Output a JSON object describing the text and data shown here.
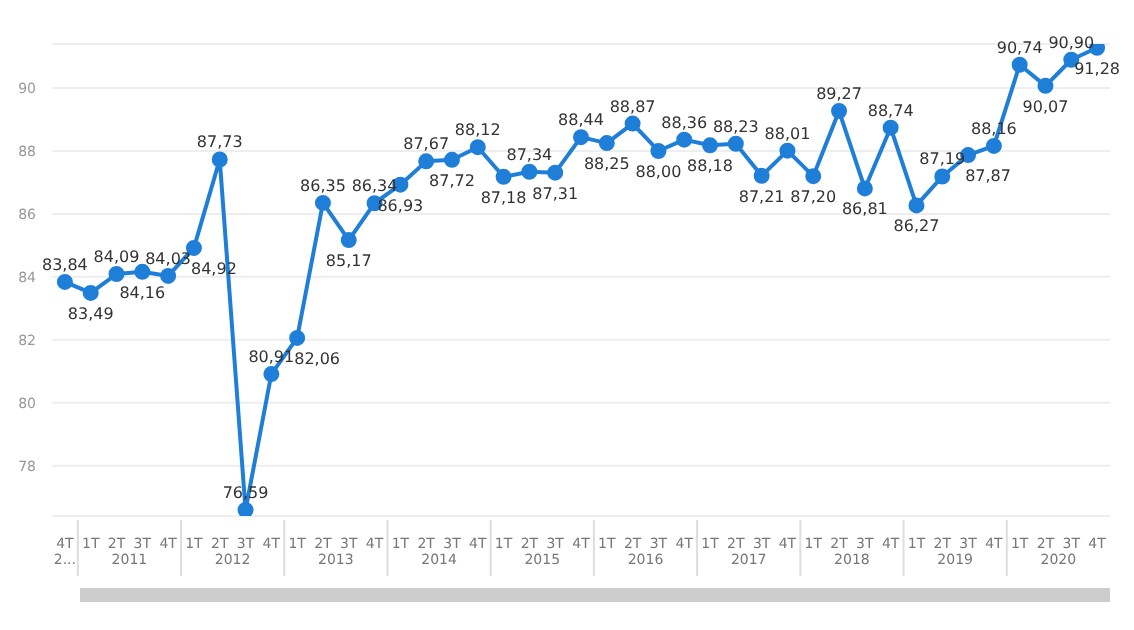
{
  "chart_data": {
    "type": "line",
    "categories": [
      "4T",
      "1T",
      "2T",
      "3T",
      "4T",
      "1T",
      "2T",
      "3T",
      "4T",
      "1T",
      "2T",
      "3T",
      "4T",
      "1T",
      "2T",
      "3T",
      "4T",
      "1T",
      "2T",
      "3T",
      "4T",
      "1T",
      "2T",
      "3T",
      "4T",
      "1T",
      "2T",
      "3T",
      "4T",
      "1T",
      "2T",
      "3T",
      "4T",
      "1T",
      "2T",
      "3T",
      "4T",
      "1T",
      "2T",
      "3T",
      "4T"
    ],
    "annotations": [
      "2...",
      "2011",
      "2012",
      "2013",
      "2014",
      "2015",
      "2016",
      "2017",
      "2018",
      "2019",
      "2020"
    ],
    "series": [
      {
        "color": "#1f7fd8",
        "values": [
          83.84,
          83.49,
          84.09,
          84.16,
          84.03,
          84.92,
          87.73,
          76.59,
          80.91,
          82.06,
          86.35,
          85.17,
          86.34,
          86.93,
          87.67,
          87.72,
          88.12,
          87.18,
          87.34,
          87.31,
          88.44,
          88.25,
          88.87,
          88.0,
          88.36,
          88.18,
          88.23,
          87.21,
          88.01,
          87.2,
          89.27,
          86.81,
          88.74,
          86.27,
          87.19,
          87.87,
          88.16,
          90.74,
          90.07,
          90.9,
          91.28
        ],
        "value_labels": [
          "83,84",
          "83,49",
          "84,09",
          "84,16",
          "84,03",
          "84,92",
          "87,73",
          "76,59",
          "80,91",
          "82,06",
          "86,35",
          "85,17",
          "86,34",
          "86,93",
          "87,67",
          "87,72",
          "88,12",
          "87,18",
          "87,34",
          "87,31",
          "88,44",
          "88,25",
          "88,87",
          "88,00",
          "88,36",
          "88,18",
          "88,23",
          "87,21",
          "88,01",
          "87,20",
          "89,27",
          "86,81",
          "88,74",
          "86,27",
          "87,19",
          "87,87",
          "88,16",
          "90,74",
          "90,07",
          "90,90",
          "91,28"
        ]
      }
    ],
    "ylim": [
      76.4,
      91.4
    ],
    "yticks": [
      78,
      80,
      82,
      84,
      86,
      88,
      90
    ],
    "grid": "y",
    "marker": "circle",
    "line_style": "solid"
  }
}
